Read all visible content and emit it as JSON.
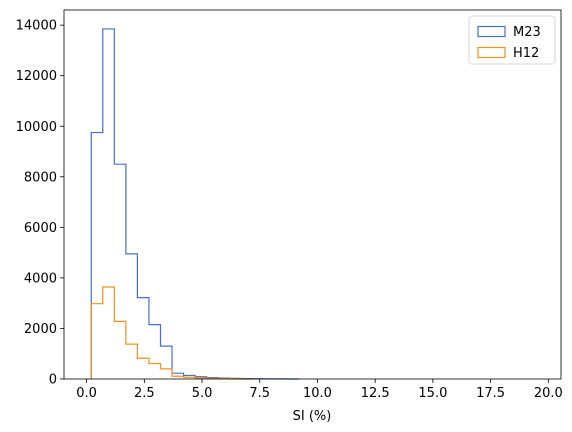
{
  "chart_data": {
    "type": "histogram",
    "xlabel": "SI (%)",
    "ylabel": "",
    "xlim": [
      -0.98,
      20.55
    ],
    "ylim": [
      0,
      14600
    ],
    "xticks": [
      0.0,
      2.5,
      5.0,
      7.5,
      10.0,
      12.5,
      15.0,
      17.5,
      20.0
    ],
    "xtick_labels": [
      "0.0",
      "2.5",
      "5.0",
      "7.5",
      "10.0",
      "12.5",
      "15.0",
      "17.5",
      "20.0"
    ],
    "yticks": [
      0,
      2000,
      4000,
      6000,
      8000,
      10000,
      12000,
      14000
    ],
    "ytick_labels": [
      "0",
      "2000",
      "4000",
      "6000",
      "8000",
      "10000",
      "12000",
      "14000"
    ],
    "bins_start": 0.2,
    "bin_width": 0.5,
    "legend_position": "top-right",
    "series": [
      {
        "name": "M23",
        "color": "#4472c4",
        "values": [
          9750,
          13850,
          8500,
          4950,
          3220,
          2150,
          1300,
          230,
          140,
          90,
          55,
          35,
          25,
          18,
          12,
          8,
          5,
          0
        ]
      },
      {
        "name": "H12",
        "color": "#f0901e",
        "values": [
          2980,
          3640,
          2280,
          1380,
          820,
          610,
          400,
          110,
          70,
          45,
          28,
          18,
          10,
          0
        ]
      }
    ]
  }
}
